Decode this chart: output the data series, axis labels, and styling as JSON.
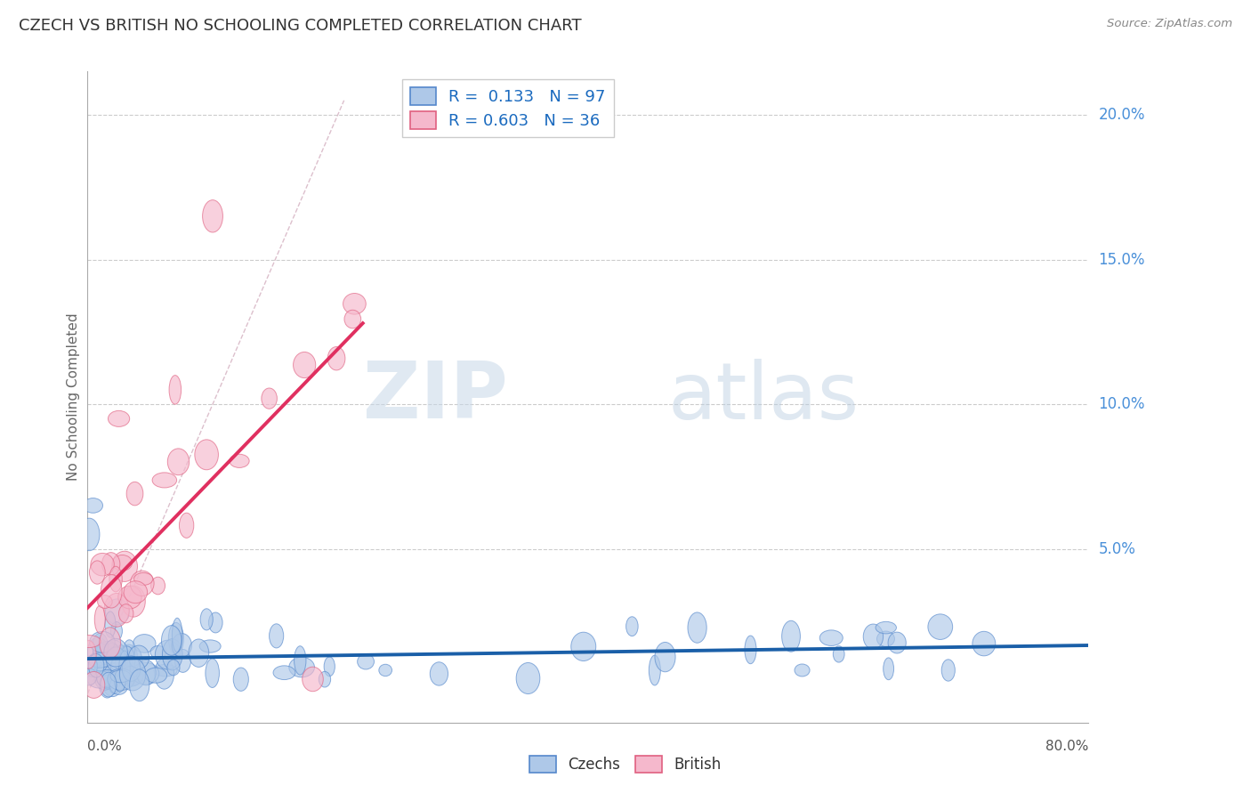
{
  "title": "CZECH VS BRITISH NO SCHOOLING COMPLETED CORRELATION CHART",
  "source_text": "Source: ZipAtlas.com",
  "ylabel": "No Schooling Completed",
  "ytick_labels": [
    "5.0%",
    "10.0%",
    "15.0%",
    "20.0%"
  ],
  "ytick_values": [
    0.05,
    0.1,
    0.15,
    0.2
  ],
  "xlim": [
    0.0,
    0.8
  ],
  "ylim": [
    -0.01,
    0.215
  ],
  "czech_face_color": "#aec8e8",
  "czech_edge_color": "#5588cc",
  "british_face_color": "#f5b8cc",
  "british_edge_color": "#e06080",
  "czech_line_color": "#1a5fa8",
  "british_line_color": "#e03060",
  "ref_line_color": "#d4b0c0",
  "grid_color": "#cccccc",
  "R_czech": 0.133,
  "N_czech": 97,
  "R_british": 0.603,
  "N_british": 36,
  "legend_text_color": "#1a6abf",
  "legend_N_color": "#e03060",
  "watermark_zip_color": "#c8d8e8",
  "watermark_atlas_color": "#b8cce0",
  "axis_label_color": "#4a90d9",
  "title_color": "#333333",
  "source_color": "#888888",
  "bottom_label_color": "#555555"
}
